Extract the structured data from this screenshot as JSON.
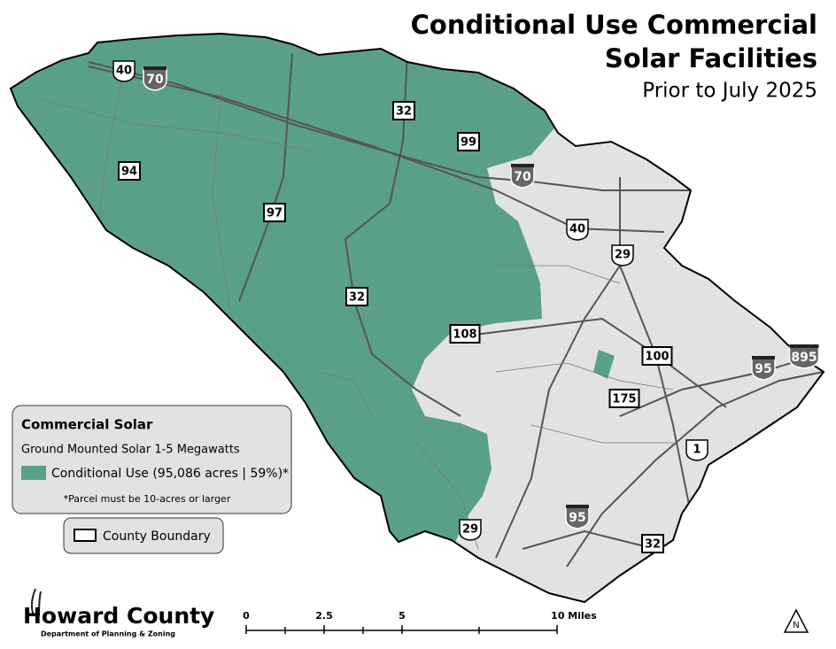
{
  "title": {
    "line1": "Conditional Use Commercial",
    "line2": "Solar Facilities",
    "subtitle": "Prior to July 2025"
  },
  "legend": {
    "heading": "Commercial Solar",
    "subheading": "Ground Mounted Solar 1-5 Megawatts",
    "item": {
      "label": "Conditional Use (95,086 acres | 59%)*",
      "color": "#5aa088"
    },
    "note": "*Parcel must be 10-acres or larger"
  },
  "boundary_legend": "County Boundary",
  "logo": {
    "name": "Howard County",
    "department": "Department of Planning & Zoning"
  },
  "scale_bar": {
    "labels": [
      "0",
      "2.5",
      "5",
      "10 Miles"
    ]
  },
  "north_arrow": "N",
  "route_shields": [
    {
      "label": "40",
      "style": "us"
    },
    {
      "label": "70",
      "style": "interstate"
    },
    {
      "label": "32",
      "style": "state"
    },
    {
      "label": "99",
      "style": "state"
    },
    {
      "label": "94",
      "style": "state"
    },
    {
      "label": "97",
      "style": "state"
    },
    {
      "label": "70",
      "style": "interstate"
    },
    {
      "label": "40",
      "style": "us"
    },
    {
      "label": "29",
      "style": "us"
    },
    {
      "label": "32",
      "style": "state"
    },
    {
      "label": "108",
      "style": "state"
    },
    {
      "label": "100",
      "style": "state"
    },
    {
      "label": "175",
      "style": "state"
    },
    {
      "label": "95",
      "style": "interstate"
    },
    {
      "label": "895",
      "style": "interstate"
    },
    {
      "label": "1",
      "style": "us"
    },
    {
      "label": "95",
      "style": "interstate"
    },
    {
      "label": "29",
      "style": "us"
    },
    {
      "label": "32",
      "style": "state"
    }
  ]
}
